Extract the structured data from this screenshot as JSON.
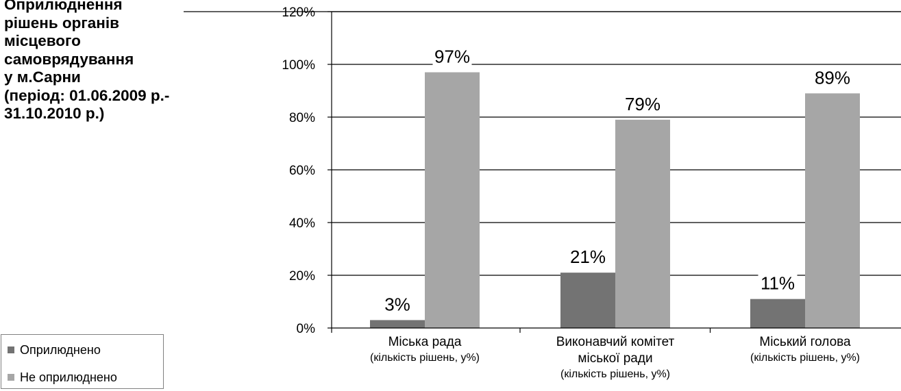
{
  "chart_data": {
    "type": "bar",
    "title": "Оприлюднення\nрішень органів\nмісцевого\nсамоврядування\nу м.Сарни\n(період: 01.06.2009 р.-\n31.10.2010 р.)",
    "xlabel": "",
    "ylabel": "",
    "ylim": [
      0,
      120
    ],
    "yticks": [
      "0%",
      "20%",
      "40%",
      "60%",
      "80%",
      "100%",
      "120%"
    ],
    "grid": true,
    "legend_position": "bottom-left",
    "categories": [
      [
        "Міська рада",
        "(кількість рішень, у%)"
      ],
      [
        "Виконавчий комітет",
        "міської ради",
        "(кількість рішень, у%)"
      ],
      [
        "Міський голова",
        "(кількість рішень, у%)"
      ]
    ],
    "series": [
      {
        "name": "Оприлюднено",
        "values": [
          3,
          21,
          11
        ],
        "labels": [
          "3%",
          "21%",
          "11%"
        ],
        "color": "#737373"
      },
      {
        "name": "Не оприлюднено",
        "values": [
          97,
          79,
          89
        ],
        "labels": [
          "97%",
          "79%",
          "89%"
        ],
        "color": "#a6a6a6"
      }
    ]
  }
}
